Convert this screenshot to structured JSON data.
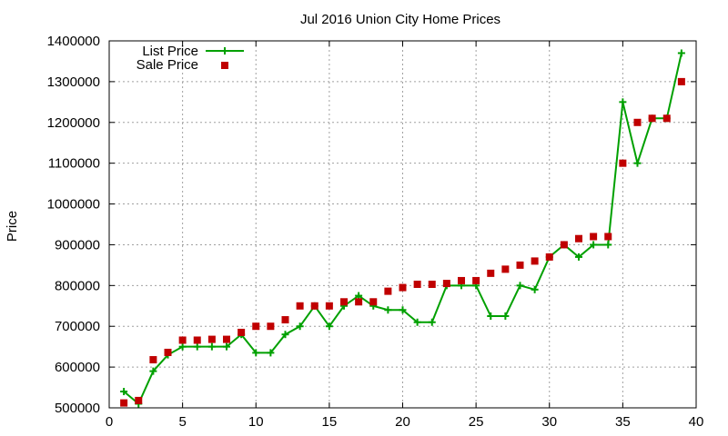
{
  "chart_data": {
    "type": "line",
    "title": "Jul 2016 Union City Home Prices",
    "xlabel": "",
    "ylabel": "Price",
    "xlim": [
      0,
      40
    ],
    "ylim": [
      500000,
      1400000
    ],
    "xticks": [
      0,
      5,
      10,
      15,
      20,
      25,
      30,
      35,
      40
    ],
    "yticks": [
      500000,
      600000,
      700000,
      800000,
      900000,
      1000000,
      1100000,
      1200000,
      1300000,
      1400000
    ],
    "grid": true,
    "legend_position": "top-left",
    "series": [
      {
        "name": "List Price",
        "style": "line-with-plus-markers",
        "color": "#00a000",
        "x": [
          1,
          2,
          3,
          4,
          5,
          6,
          7,
          8,
          9,
          10,
          11,
          12,
          13,
          14,
          15,
          16,
          17,
          18,
          19,
          20,
          21,
          22,
          23,
          24,
          25,
          26,
          27,
          28,
          29,
          30,
          31,
          32,
          33,
          34,
          35,
          36,
          37,
          38,
          39
        ],
        "values": [
          540000,
          510000,
          590000,
          630000,
          650000,
          650000,
          650000,
          650000,
          680000,
          635000,
          635000,
          680000,
          700000,
          750000,
          700000,
          750000,
          775000,
          750000,
          740000,
          740000,
          710000,
          710000,
          800000,
          800000,
          800000,
          725000,
          725000,
          800000,
          790000,
          870000,
          900000,
          870000,
          900000,
          900000,
          1250000,
          1100000,
          1210000,
          1210000,
          1370000
        ]
      },
      {
        "name": "Sale Price",
        "style": "square-markers",
        "color": "#c00000",
        "x": [
          1,
          2,
          3,
          4,
          5,
          6,
          7,
          8,
          9,
          10,
          11,
          12,
          13,
          14,
          15,
          16,
          17,
          18,
          19,
          20,
          21,
          22,
          23,
          24,
          25,
          26,
          27,
          28,
          29,
          30,
          31,
          32,
          33,
          34,
          35,
          36,
          37,
          38,
          39
        ],
        "values": [
          512000,
          518000,
          618000,
          636000,
          666000,
          666000,
          668000,
          668000,
          685000,
          700000,
          700000,
          716000,
          750000,
          750000,
          750000,
          760000,
          760000,
          760000,
          786000,
          795000,
          803000,
          803000,
          805000,
          812000,
          812000,
          830000,
          840000,
          850000,
          860000,
          870000,
          900000,
          915000,
          920000,
          920000,
          1100000,
          1200000,
          1210000,
          1210000,
          1300000
        ]
      }
    ]
  }
}
